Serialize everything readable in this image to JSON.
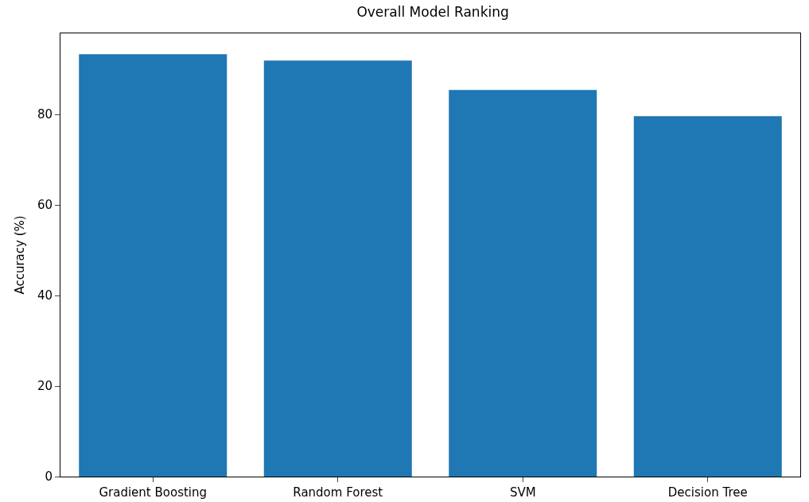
{
  "chart_data": {
    "type": "bar",
    "title": "Overall Model Ranking",
    "ylabel": "Accuracy (%)",
    "categories": [
      "Gradient Boosting",
      "Random Forest",
      "SVM",
      "Decision Tree"
    ],
    "values": [
      93.3,
      91.9,
      85.4,
      79.6
    ],
    "color": "#1f77b4",
    "ylim": [
      0,
      97.9
    ],
    "yticks": [
      0,
      20,
      40,
      60,
      80
    ],
    "grid": false
  }
}
